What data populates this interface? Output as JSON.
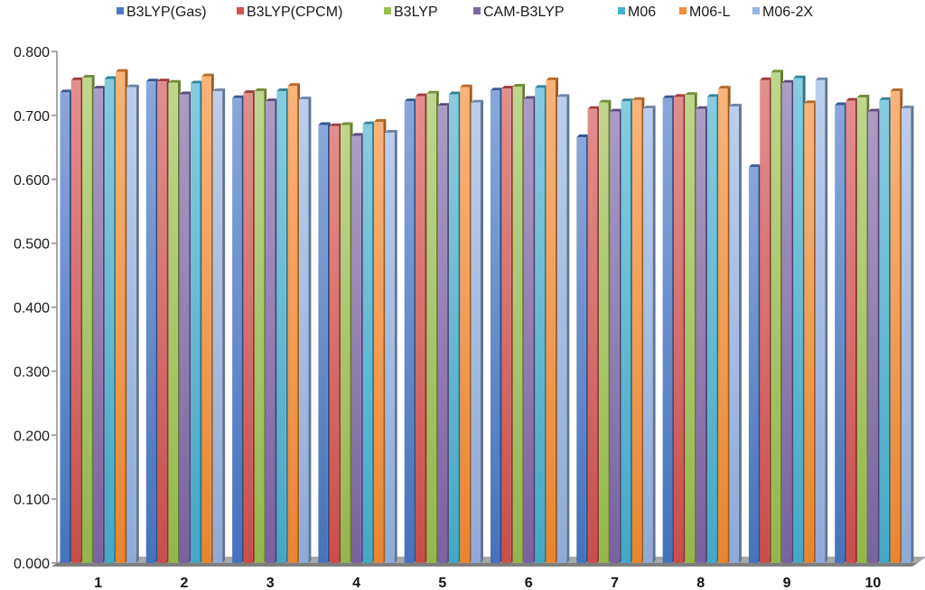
{
  "chart_data": {
    "type": "bar",
    "categories": [
      "1",
      "2",
      "3",
      "4",
      "5",
      "6",
      "7",
      "8",
      "9",
      "10"
    ],
    "yticks": [
      "0.000",
      "0.100",
      "0.200",
      "0.300",
      "0.400",
      "0.500",
      "0.600",
      "0.700",
      "0.800"
    ],
    "ylim": [
      0,
      0.8
    ],
    "grid": false,
    "legend": "top",
    "series": [
      {
        "name": "B3LYP(Gas)",
        "color": "#4A78C6",
        "values": [
          0.736,
          0.753,
          0.727,
          0.685,
          0.722,
          0.739,
          0.666,
          0.727,
          0.619,
          0.716
        ]
      },
      {
        "name": "B3LYP(CPCM)",
        "color": "#D4524F",
        "values": [
          0.755,
          0.753,
          0.735,
          0.683,
          0.73,
          0.742,
          0.71,
          0.729,
          0.755,
          0.723
        ]
      },
      {
        "name": "B3LYP",
        "color": "#9CC04F",
        "values": [
          0.759,
          0.751,
          0.738,
          0.685,
          0.734,
          0.745,
          0.72,
          0.732,
          0.767,
          0.728
        ]
      },
      {
        "name": "CAM-B3LYP",
        "color": "#8066A8",
        "values": [
          0.742,
          0.733,
          0.722,
          0.668,
          0.715,
          0.726,
          0.706,
          0.71,
          0.751,
          0.706
        ]
      },
      {
        "name": "M06",
        "color": "#45B1CF",
        "values": [
          0.757,
          0.75,
          0.738,
          0.686,
          0.733,
          0.743,
          0.722,
          0.729,
          0.758,
          0.724
        ]
      },
      {
        "name": "M06-L",
        "color": "#F58C33",
        "values": [
          0.768,
          0.761,
          0.746,
          0.69,
          0.744,
          0.755,
          0.724,
          0.742,
          0.719,
          0.738
        ]
      },
      {
        "name": "M06-2X",
        "color": "#97B3E2",
        "values": [
          0.744,
          0.738,
          0.725,
          0.673,
          0.72,
          0.729,
          0.711,
          0.714,
          0.755,
          0.711
        ]
      }
    ]
  }
}
